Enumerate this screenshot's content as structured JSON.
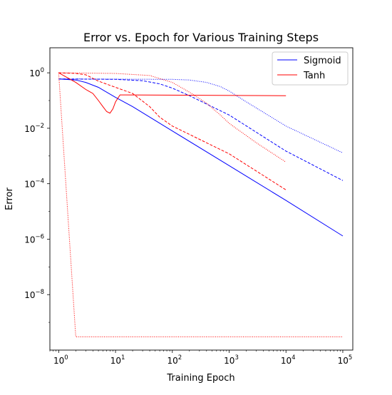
{
  "chart_data": {
    "type": "line",
    "title": "Error vs. Epoch for Various Training Steps",
    "xlabel": "Training Epoch",
    "ylabel": "Error",
    "xscale": "log",
    "yscale": "log",
    "xlim": [
      0.7,
      150000
    ],
    "ylim": [
      1e-10,
      8
    ],
    "x_ticks": [
      {
        "value": 1,
        "base": "10",
        "exp": "0"
      },
      {
        "value": 10,
        "base": "10",
        "exp": "1"
      },
      {
        "value": 100,
        "base": "10",
        "exp": "2"
      },
      {
        "value": 1000,
        "base": "10",
        "exp": "3"
      },
      {
        "value": 10000,
        "base": "10",
        "exp": "4"
      },
      {
        "value": 100000,
        "base": "10",
        "exp": "5"
      }
    ],
    "y_ticks": [
      {
        "value": 1,
        "base": "10",
        "exp": "0"
      },
      {
        "value": 0.01,
        "base": "10",
        "exp": "−2"
      },
      {
        "value": 0.0001,
        "base": "10",
        "exp": "−4"
      },
      {
        "value": 1e-06,
        "base": "10",
        "exp": "−6"
      },
      {
        "value": 1e-08,
        "base": "10",
        "exp": "−8"
      }
    ],
    "grid": false,
    "legend_position": "top-right",
    "legend": [
      {
        "name": "Sigmoid",
        "color": "#0000ff"
      },
      {
        "name": "Tanh",
        "color": "#ff0000"
      }
    ],
    "series": [
      {
        "activation": "Sigmoid",
        "color": "#0000ff",
        "linestyle": "solid",
        "points": [
          [
            1,
            0.6
          ],
          [
            2,
            0.55
          ],
          [
            3,
            0.45
          ],
          [
            5,
            0.3
          ],
          [
            10,
            0.13
          ],
          [
            20,
            0.06
          ],
          [
            100,
            0.008
          ],
          [
            1000,
            0.00045
          ],
          [
            10000,
            2.5e-05
          ],
          [
            100000,
            1.3e-06
          ]
        ]
      },
      {
        "activation": "Sigmoid",
        "color": "#0000ff",
        "linestyle": "dashed",
        "points": [
          [
            1,
            0.6
          ],
          [
            10,
            0.58
          ],
          [
            30,
            0.52
          ],
          [
            60,
            0.4
          ],
          [
            100,
            0.28
          ],
          [
            200,
            0.15
          ],
          [
            1000,
            0.03
          ],
          [
            10000,
            0.0015
          ],
          [
            100000,
            0.00013
          ]
        ]
      },
      {
        "activation": "Sigmoid",
        "color": "#0000ff",
        "linestyle": "dotted",
        "points": [
          [
            1,
            0.6
          ],
          [
            100,
            0.58
          ],
          [
            200,
            0.55
          ],
          [
            400,
            0.45
          ],
          [
            700,
            0.32
          ],
          [
            1000,
            0.22
          ],
          [
            2000,
            0.09
          ],
          [
            10000,
            0.012
          ],
          [
            100000,
            0.0013
          ]
        ]
      },
      {
        "activation": "Tanh",
        "color": "#ff0000",
        "linestyle": "solid",
        "points": [
          [
            1,
            1.0
          ],
          [
            2,
            0.45
          ],
          [
            3,
            0.25
          ],
          [
            4,
            0.18
          ],
          [
            5,
            0.1
          ],
          [
            6,
            0.06
          ],
          [
            7,
            0.04
          ],
          [
            8,
            0.035
          ],
          [
            9,
            0.05
          ],
          [
            10,
            0.09
          ],
          [
            12,
            0.16
          ],
          [
            15,
            0.16
          ],
          [
            10000,
            0.15
          ]
        ]
      },
      {
        "activation": "Tanh",
        "color": "#ff0000",
        "linestyle": "dashed",
        "points": [
          [
            1,
            1.0
          ],
          [
            2,
            0.95
          ],
          [
            3,
            0.85
          ],
          [
            5,
            0.5
          ],
          [
            10,
            0.3
          ],
          [
            20,
            0.18
          ],
          [
            40,
            0.06
          ],
          [
            60,
            0.025
          ],
          [
            100,
            0.012
          ],
          [
            1000,
            0.0012
          ],
          [
            10000,
            6e-05
          ]
        ]
      },
      {
        "activation": "Tanh",
        "color": "#ff0000",
        "linestyle": "dotted",
        "points": [
          [
            1,
            1.0
          ],
          [
            10,
            0.95
          ],
          [
            40,
            0.8
          ],
          [
            100,
            0.45
          ],
          [
            200,
            0.2
          ],
          [
            400,
            0.08
          ],
          [
            700,
            0.03
          ],
          [
            1000,
            0.015
          ],
          [
            3000,
            0.003
          ],
          [
            10000,
            0.0006
          ]
        ]
      },
      {
        "activation": "Tanh",
        "color": "#ff0000",
        "linestyle": "dotted",
        "points": [
          [
            1,
            1.0
          ],
          [
            2,
            3e-10
          ],
          [
            100000,
            3e-10
          ]
        ]
      }
    ]
  }
}
